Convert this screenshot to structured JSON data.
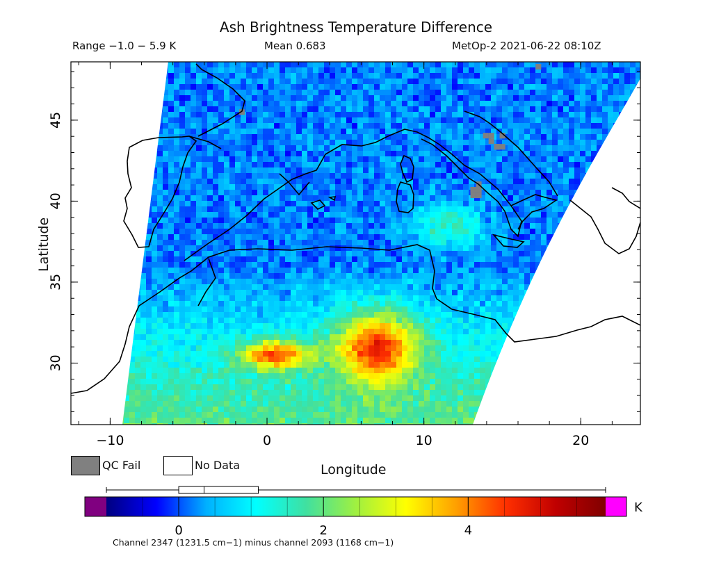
{
  "header": {
    "title": "Ash Brightness Temperature Difference",
    "range": "Range −1.0 − 5.9 K",
    "mean": "Mean 0.683",
    "satellite_time": "MetOp-2 2021-06-22 08:10Z"
  },
  "axes": {
    "xlabel": "Longitude",
    "ylabel": "Latitude",
    "x_ticks": [
      "−10",
      "0",
      "10",
      "20"
    ],
    "x_tick_values": [
      -10,
      0,
      10,
      20
    ],
    "y_ticks": [
      "30",
      "35",
      "40",
      "45"
    ],
    "y_tick_values": [
      30,
      35,
      40,
      45
    ],
    "lon_range": [
      -12.5,
      23.8
    ],
    "lat_range": [
      26.2,
      48.6
    ]
  },
  "legend": {
    "qc_fail": "QC Fail",
    "no_data": "No Data",
    "qc_color": "#808080",
    "no_data_color": "#ffffff"
  },
  "colorbar": {
    "unit": "K",
    "ticks": [
      "0",
      "2",
      "4"
    ],
    "tick_values": [
      0,
      2,
      4
    ],
    "range": [
      -1.0,
      5.9
    ],
    "under_color": "#800080",
    "over_color": "#ff00ff",
    "stops": [
      "#000080",
      "#0000ff",
      "#00b0ff",
      "#00ffff",
      "#40e0a0",
      "#a0f040",
      "#ffff00",
      "#ffa000",
      "#ff3000",
      "#c00000",
      "#800000"
    ]
  },
  "boxplot": {
    "whisker_low": -1.0,
    "q1": 0.0,
    "median": 0.35,
    "q3": 1.1,
    "whisker_high": 5.9
  },
  "footer": {
    "channel_note": "Channel 2347 (1231.5 cm−1) minus channel 2093 (1168 cm−1)"
  },
  "chart_data": {
    "type": "heatmap",
    "title": "Ash Brightness Temperature Difference",
    "xlabel": "Longitude",
    "ylabel": "Latitude",
    "xlim": [
      -12.5,
      23.8
    ],
    "ylim": [
      26.2,
      48.6
    ],
    "value_range_K": [
      -1.0,
      5.9
    ],
    "mean_K": 0.683,
    "high_value_regions": [
      {
        "lon_range": [
          4,
          10
        ],
        "lat_range": [
          28.5,
          33.5
        ],
        "approx_K": 3.8
      },
      {
        "lon_range": [
          -2,
          3
        ],
        "lat_range": [
          29.5,
          31.5
        ],
        "approx_K": 3.5
      },
      {
        "lon_range": [
          9,
          14
        ],
        "lat_range": [
          37,
          40
        ],
        "approx_K": 1.6
      }
    ],
    "background_K": 0.2,
    "qc_fail_regions": [
      {
        "lon": 14.3,
        "lat": 43.7
      },
      {
        "lon": 13.5,
        "lat": 40.7
      },
      {
        "lon": -1.6,
        "lat": 45.5
      },
      {
        "lon": 17.3,
        "lat": 48.3
      }
    ]
  }
}
